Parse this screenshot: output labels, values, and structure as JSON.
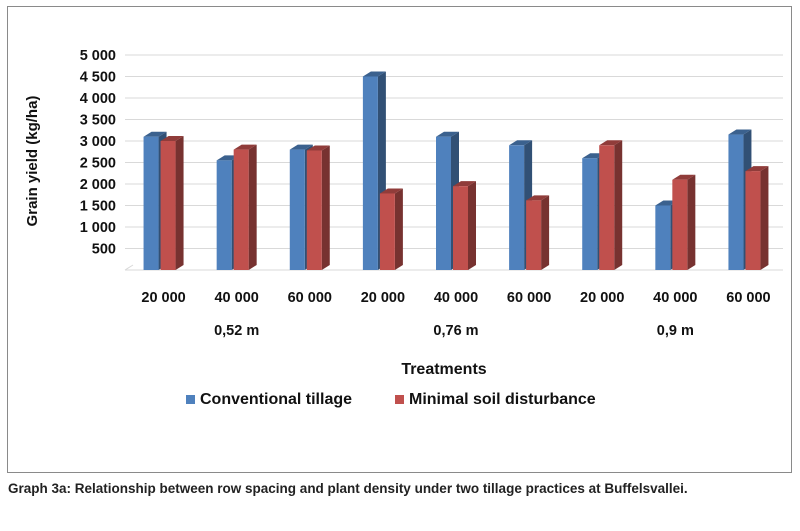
{
  "chart_data": {
    "type": "bar",
    "ylabel": "Grain yield (kg/ha)",
    "xlabel": "Treatments",
    "ylim": [
      0,
      5000
    ],
    "y_ticks": [
      "500",
      "1 000",
      "1 500",
      "2 000",
      "2 500",
      "3 000",
      "3 500",
      "4 000",
      "4 500",
      "5 000"
    ],
    "categories": [
      "20 000",
      "40 000",
      "60 000",
      "20 000",
      "40 000",
      "60 000",
      "20 000",
      "40 000",
      "60 000"
    ],
    "groups": [
      "0,52 m",
      "0,76 m",
      "0,9 m"
    ],
    "series": [
      {
        "name": "Conventional tillage",
        "color": "#4f81bd",
        "values": [
          3100,
          2550,
          2800,
          4500,
          3100,
          2900,
          2600,
          1500,
          3150
        ]
      },
      {
        "name": "Minimal soil disturbance",
        "color": "#c0504d",
        "values": [
          3000,
          2800,
          2780,
          1780,
          1950,
          1620,
          2900,
          2100,
          2300
        ]
      }
    ],
    "grid": true,
    "legend_position": "bottom"
  },
  "caption": "Graph 3a: Relationship between row spacing and plant density under two tillage practices at Buf­felsvallei."
}
